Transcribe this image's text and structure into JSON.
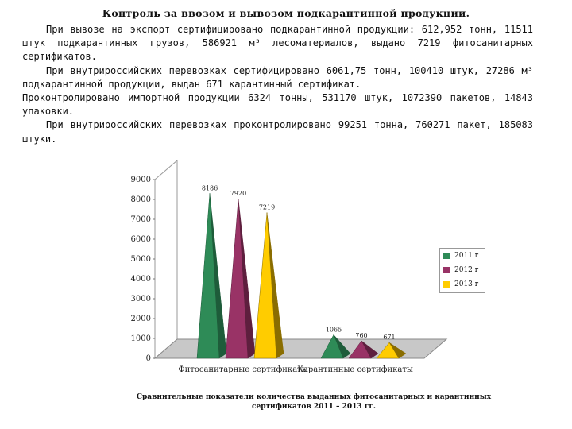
{
  "heading": "Контроль за ввозом и вывозом подкарантинной продукции.",
  "paragraphs": [
    "При вывозе на экспорт сертифицировано подкарантинной продукции: 612,952 тонн, 11511 штук подкарантинных грузов, 586921 м³ лесоматериалов, выдано 7219 фитосанитарных сертификатов.",
    "При внутрироссийских перевозках сертифицировано 6061,75 тонн, 100410 штук, 27286 м³ подкарантинной продукции, выдан 671 карантинный сертификат.",
    "Проконтролировано импортной продукции 6324 тонны, 531170 штук, 1072390 пакетов, 14843 упаковки.",
    "При внутрироссийских перевозках проконтролировано 99251 тонна, 760271 пакет, 185083 штуки."
  ],
  "chart_data": {
    "type": "bar",
    "categories": [
      "Фитосанитарные сертификаты",
      "Карантинные сертификаты"
    ],
    "series": [
      {
        "name": "2011 г",
        "values": [
          8186,
          1065
        ],
        "color": "#2e8b57",
        "dark": "#1e5c3a"
      },
      {
        "name": "2012 г",
        "values": [
          7920,
          760
        ],
        "color": "#993366",
        "dark": "#5e1f3e"
      },
      {
        "name": "2013 г",
        "values": [
          7219,
          671
        ],
        "color": "#ffcc00",
        "dark": "#8a6d00"
      }
    ],
    "data_labels": [
      [
        "8186",
        "7920",
        "7219"
      ],
      [
        "1065",
        "760",
        "671"
      ]
    ],
    "yticks": [
      "0",
      "1000",
      "2000",
      "3000",
      "4000",
      "5000",
      "6000",
      "7000",
      "8000",
      "9000"
    ],
    "ylim": [
      0,
      9000
    ],
    "legend_position": "right",
    "grid": false,
    "style": "3d-pyramid"
  },
  "caption": "Сравнительные показатели количества выданных фитосанитарных и карантинных сертификатов 2011 – 2013 гг."
}
